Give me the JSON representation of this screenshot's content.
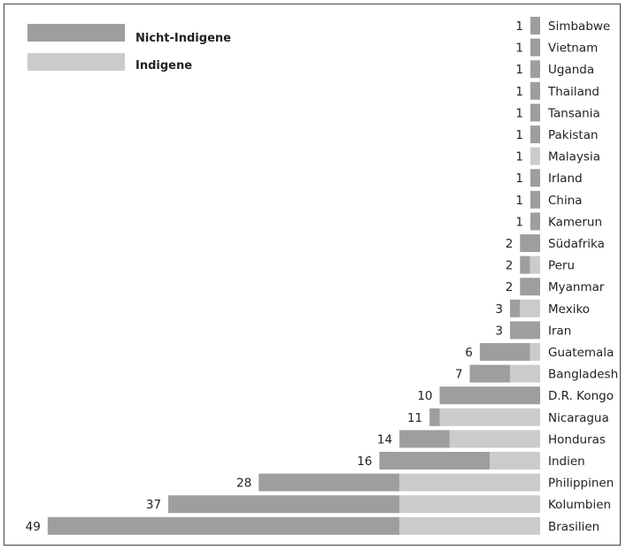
{
  "chart_data": {
    "type": "bar",
    "orientation": "horizontal",
    "stacked": true,
    "categories": [
      "Simbabwe",
      "Vietnam",
      "Uganda",
      "Thailand",
      "Tansania",
      "Pakistan",
      "Malaysia",
      "Irland",
      "China",
      "Kamerun",
      "Südafrika",
      "Peru",
      "Myanmar",
      "Mexiko",
      "Iran",
      "Guatemala",
      "Bangladesh",
      "D.R. Kongo",
      "Nicaragua",
      "Honduras",
      "Indien",
      "Philippinen",
      "Kolumbien",
      "Brasilien"
    ],
    "totals": [
      1,
      1,
      1,
      1,
      1,
      1,
      1,
      1,
      1,
      1,
      2,
      2,
      2,
      3,
      3,
      6,
      7,
      10,
      11,
      14,
      16,
      28,
      37,
      49
    ],
    "series": [
      {
        "name": "Nicht-Indigene",
        "color": "#9e9e9e",
        "values": [
          1,
          1,
          1,
          1,
          1,
          1,
          0,
          1,
          1,
          1,
          2,
          1,
          2,
          1,
          3,
          5,
          4,
          10,
          1,
          5,
          11,
          14,
          23,
          35
        ]
      },
      {
        "name": "Indigene",
        "color": "#cbcbcb",
        "values": [
          0,
          0,
          0,
          0,
          0,
          0,
          1,
          0,
          0,
          0,
          0,
          1,
          0,
          2,
          0,
          1,
          3,
          0,
          10,
          9,
          5,
          14,
          14,
          14
        ]
      }
    ],
    "title": "",
    "xlabel": "",
    "ylabel": "",
    "legend_position": "top-left",
    "grid": false
  }
}
